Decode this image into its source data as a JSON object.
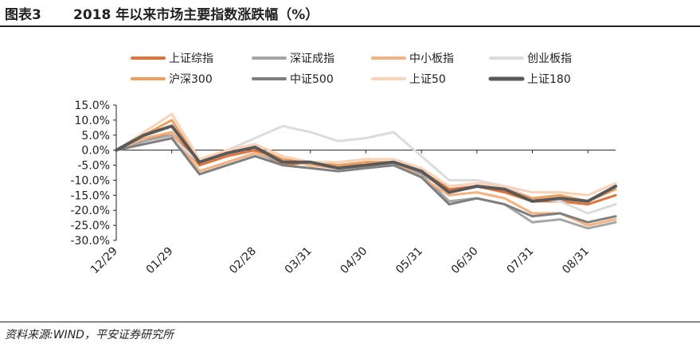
{
  "figure": {
    "number": "图表3",
    "title": "2018 年以来市场主要指数涨跌幅（%）",
    "source": "资料来源:WIND，平安证券研究所"
  },
  "chart_data": {
    "type": "line",
    "xlabel": "",
    "ylabel": "",
    "ylim": [
      -30,
      15
    ],
    "yticks": [
      "15.0%",
      "10.0%",
      "5.0%",
      "0.0%",
      "-5.0%",
      "-10.0%",
      "-15.0%",
      "-20.0%",
      "-25.0%",
      "-30.0%"
    ],
    "ytick_values": [
      15,
      10,
      5,
      0,
      -5,
      -10,
      -15,
      -20,
      -25,
      -30
    ],
    "x": [
      "12/29",
      "01/12",
      "01/29",
      "02/06",
      "02/12",
      "02/28",
      "03/13",
      "03/31",
      "04/16",
      "04/30",
      "05/15",
      "05/31",
      "06/15",
      "06/30",
      "07/16",
      "07/31",
      "08/15",
      "08/31",
      "09/14"
    ],
    "xticks": [
      "12/29",
      "01/29",
      "02/28",
      "03/31",
      "04/30",
      "05/31",
      "06/30",
      "07/31",
      "08/31"
    ],
    "grid": false,
    "legend_position": "top",
    "series": [
      {
        "name": "上证综指",
        "color": "#e2733a",
        "width": 3,
        "values": [
          0,
          3,
          6,
          -5,
          -2,
          0,
          -5,
          -4,
          -5,
          -4,
          -4,
          -7,
          -13,
          -12,
          -14,
          -17,
          -17,
          -18,
          -15
        ]
      },
      {
        "name": "深证成指",
        "color": "#a6a6a6",
        "width": 3,
        "values": [
          0,
          3,
          5,
          -7,
          -4,
          -1,
          -4,
          -4,
          -5,
          -5,
          -4,
          -8,
          -17,
          -16,
          -18,
          -24,
          -23,
          -26,
          -24
        ]
      },
      {
        "name": "中小板指",
        "color": "#f3b27f",
        "width": 3,
        "values": [
          0,
          4,
          6,
          -7,
          -4,
          -1,
          -3,
          -5,
          -6,
          -5,
          -4,
          -9,
          -15,
          -14,
          -16,
          -21,
          -21,
          -25,
          -23
        ]
      },
      {
        "name": "创业板指",
        "color": "#dcdcdc",
        "width": 3,
        "values": [
          0,
          2,
          4,
          -4,
          0,
          4,
          8,
          6,
          3,
          4,
          6,
          -2,
          -10,
          -10,
          -12,
          -16,
          -17,
          -21,
          -18
        ]
      },
      {
        "name": "沪深300",
        "color": "#ee9f5c",
        "width": 3,
        "values": [
          0,
          5,
          10,
          -4,
          -1,
          1,
          -3,
          -4,
          -5,
          -4,
          -4,
          -7,
          -14,
          -12,
          -13,
          -16,
          -15,
          -17,
          -13
        ]
      },
      {
        "name": "中证500",
        "color": "#7f7f7f",
        "width": 3,
        "values": [
          0,
          2,
          4,
          -8,
          -5,
          -2,
          -5,
          -6,
          -7,
          -6,
          -5,
          -9,
          -18,
          -16,
          -18,
          -22,
          -21,
          -24,
          -22
        ]
      },
      {
        "name": "上证50",
        "color": "#f9d2b7",
        "width": 3,
        "values": [
          0,
          6,
          12,
          -3,
          0,
          2,
          -2,
          -4,
          -4,
          -3,
          -3,
          -6,
          -12,
          -11,
          -12,
          -14,
          -14,
          -15,
          -11
        ]
      },
      {
        "name": "上证180",
        "color": "#595959",
        "width": 4,
        "values": [
          0,
          5,
          8,
          -4,
          -1,
          1,
          -4,
          -4,
          -6,
          -5,
          -4,
          -7,
          -14,
          -12,
          -13,
          -17,
          -16,
          -17,
          -12
        ]
      }
    ]
  }
}
